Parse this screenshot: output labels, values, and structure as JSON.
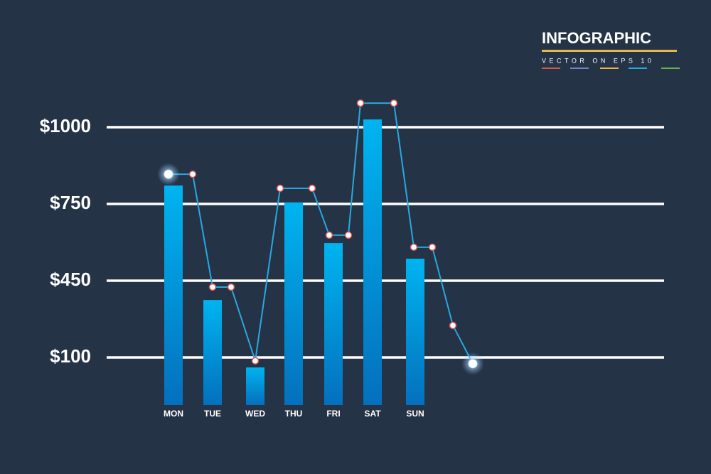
{
  "header": {
    "title": "INFOGRAPHIC",
    "subtitle": "VECTOR ON EPS 10"
  },
  "chart_data": {
    "type": "bar",
    "categories": [
      "MON",
      "TUE",
      "WED",
      "THU",
      "FRI",
      "SAT",
      "SUN"
    ],
    "values": [
      810,
      362,
      79,
      755,
      597,
      1028,
      536
    ],
    "color": "#00aeef",
    "line": {
      "color": "#29a8e0",
      "values": [
        847,
        847,
        421,
        421,
        93,
        801,
        801,
        628,
        628,
        1087,
        1087,
        581,
        581,
        246,
        87
      ]
    },
    "ylim": [
      0,
      1100
    ],
    "yticks": [
      {
        "value": 100,
        "label": "$100"
      },
      {
        "value": 450,
        "label": "$450"
      },
      {
        "value": 750,
        "label": "$750"
      },
      {
        "value": 1000,
        "label": "$1000"
      }
    ],
    "grid": true
  }
}
